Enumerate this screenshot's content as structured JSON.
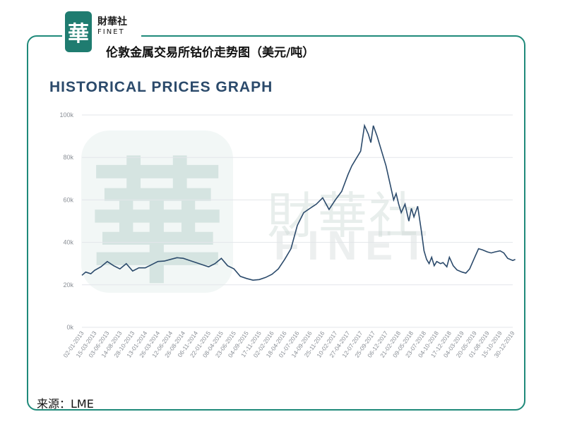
{
  "brand": {
    "logo_char": "華",
    "name_cn": "財華社",
    "name_en": "FINET"
  },
  "watermark": {
    "cn": "財華社",
    "en": "FINET",
    "logo_char": "華"
  },
  "header": {
    "title_cn": "伦敦金属交易所钴价走势图（美元/吨）"
  },
  "source": "来源：LME",
  "colors": {
    "frame": "#1f8a7a",
    "line": "#2b4a6b",
    "title": "#2b4a6b"
  },
  "chart_data": {
    "type": "line",
    "title": "HISTORICAL PRICES GRAPH",
    "ylim": [
      0,
      100000
    ],
    "y_ticks": [
      {
        "value": 0,
        "label": "0k"
      },
      {
        "value": 20000,
        "label": "20k"
      },
      {
        "value": 40000,
        "label": "40k"
      },
      {
        "value": 60000,
        "label": "60k"
      },
      {
        "value": 80000,
        "label": "80k"
      },
      {
        "value": 100000,
        "label": "100k"
      }
    ],
    "x_tick_labels": [
      "02-01-2013",
      "15-03-2013",
      "03-06-2013",
      "14-08-2013",
      "28-10-2013",
      "13-01-2014",
      "26-03-2014",
      "12-06-2014",
      "26-08-2014",
      "06-11-2014",
      "22-01-2015",
      "08-04-2015",
      "23-06-2015",
      "04-09-2015",
      "17-11-2015",
      "02-02-2016",
      "18-04-2016",
      "01-07-2016",
      "14-09-2016",
      "25-11-2016",
      "10-02-2017",
      "27-04-2017",
      "12-07-2017",
      "25-09-2017",
      "06-12-2017",
      "21-02-2018",
      "09-05-2018",
      "23-07-2018",
      "04-10-2018",
      "17-12-2018",
      "04-03-2019",
      "20-05-2019",
      "01-08-2019",
      "15-10-2019",
      "30-12-2019"
    ],
    "grid": true,
    "series": [
      {
        "x": [
          0,
          0.3,
          0.7,
          1,
          1.5,
          2,
          2.5,
          3,
          3.5,
          4,
          4.5,
          5,
          5.5,
          6,
          6.5,
          7,
          7.5,
          8,
          8.5,
          9,
          9.5,
          10,
          10.5,
          11,
          11.5,
          12,
          12.5,
          13,
          13.5,
          14,
          14.5,
          15,
          15.5,
          16,
          16.5,
          17,
          17.5,
          18,
          18.5,
          19,
          19.5,
          20,
          20.5,
          21,
          21.3,
          21.6,
          22,
          22.3,
          22.6,
          22.8,
          23,
          23.3,
          23.6,
          24,
          24.3,
          24.6,
          24.8,
          25,
          25.2,
          25.5,
          25.8,
          26,
          26.2,
          26.5,
          26.8,
          27,
          27.2,
          27.4,
          27.6,
          27.8,
          28,
          28.3,
          28.5,
          28.8,
          29,
          29.3,
          29.6,
          30,
          30.3,
          30.6,
          31,
          31.3,
          31.6,
          32,
          32.3,
          32.6,
          33,
          33.3,
          33.6,
          34,
          34.2
        ],
        "values": [
          24500,
          26000,
          25200,
          26800,
          28500,
          31000,
          29000,
          27500,
          30000,
          26500,
          28000,
          28000,
          29500,
          31000,
          31200,
          32000,
          32800,
          32500,
          31500,
          30500,
          29500,
          28500,
          30000,
          32500,
          29000,
          27500,
          24000,
          23000,
          22200,
          22500,
          23500,
          25000,
          27500,
          32000,
          37000,
          48000,
          54000,
          56000,
          58000,
          61000,
          55500,
          60000,
          64000,
          72000,
          76000,
          79000,
          83000,
          95000,
          91000,
          87000,
          95000,
          90000,
          84000,
          76000,
          68000,
          60000,
          63000,
          58000,
          54000,
          58000,
          50000,
          56000,
          52000,
          57000,
          45000,
          36000,
          32000,
          30000,
          33000,
          29000,
          31000,
          30000,
          30500,
          28500,
          33000,
          29000,
          27000,
          26000,
          25500,
          27500,
          33000,
          37000,
          36500,
          35500,
          35000,
          35500,
          36000,
          35000,
          32500,
          31500,
          32000
        ]
      }
    ]
  }
}
